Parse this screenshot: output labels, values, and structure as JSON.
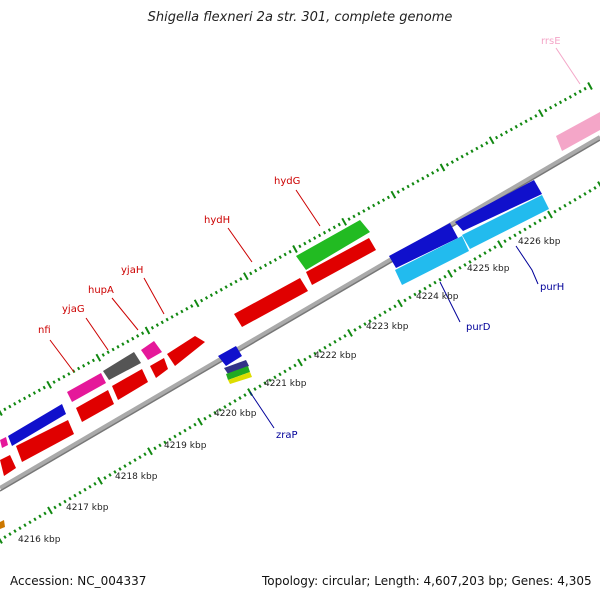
{
  "title": "Shigella flexneri 2a str. 301, complete genome",
  "footer": {
    "accession": "Accession: NC_004337",
    "summary": "Topology: circular; Length: 4,607,203 bp; Genes: 4,305"
  },
  "colors": {
    "forward_label": "#cc0000",
    "reverse_label": "#000099",
    "backbone": "#999999",
    "tick": "#118811"
  },
  "kbp_labels": [
    "4216 kbp",
    "4217 kbp",
    "4218 kbp",
    "4219 kbp",
    "4220 kbp",
    "4221 kbp",
    "4222 kbp",
    "4223 kbp",
    "4224 kbp",
    "4225 kbp",
    "4226 kbp"
  ],
  "forward_gene_labels": [
    "nfi",
    "yjaG",
    "hupA",
    "yjaH",
    "hydH",
    "hydG",
    "rrsE"
  ],
  "reverse_gene_labels": [
    "zraP",
    "purD",
    "purH"
  ]
}
